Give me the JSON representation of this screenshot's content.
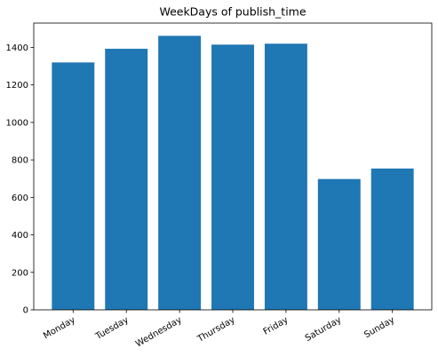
{
  "chart_data": {
    "type": "bar",
    "title": "WeekDays of publish_time",
    "xlabel": "",
    "ylabel": "",
    "categories": [
      "Monday",
      "Tuesday",
      "Wednesday",
      "Thursday",
      "Friday",
      "Saturday",
      "Sunday"
    ],
    "values": [
      1320,
      1393,
      1462,
      1415,
      1420,
      698,
      754
    ],
    "ylim": [
      0,
      1530
    ],
    "yticks": [
      0,
      200,
      400,
      600,
      800,
      1000,
      1200,
      1400
    ],
    "bar_color": "#1f77b4",
    "grid": false,
    "legend": "none"
  }
}
